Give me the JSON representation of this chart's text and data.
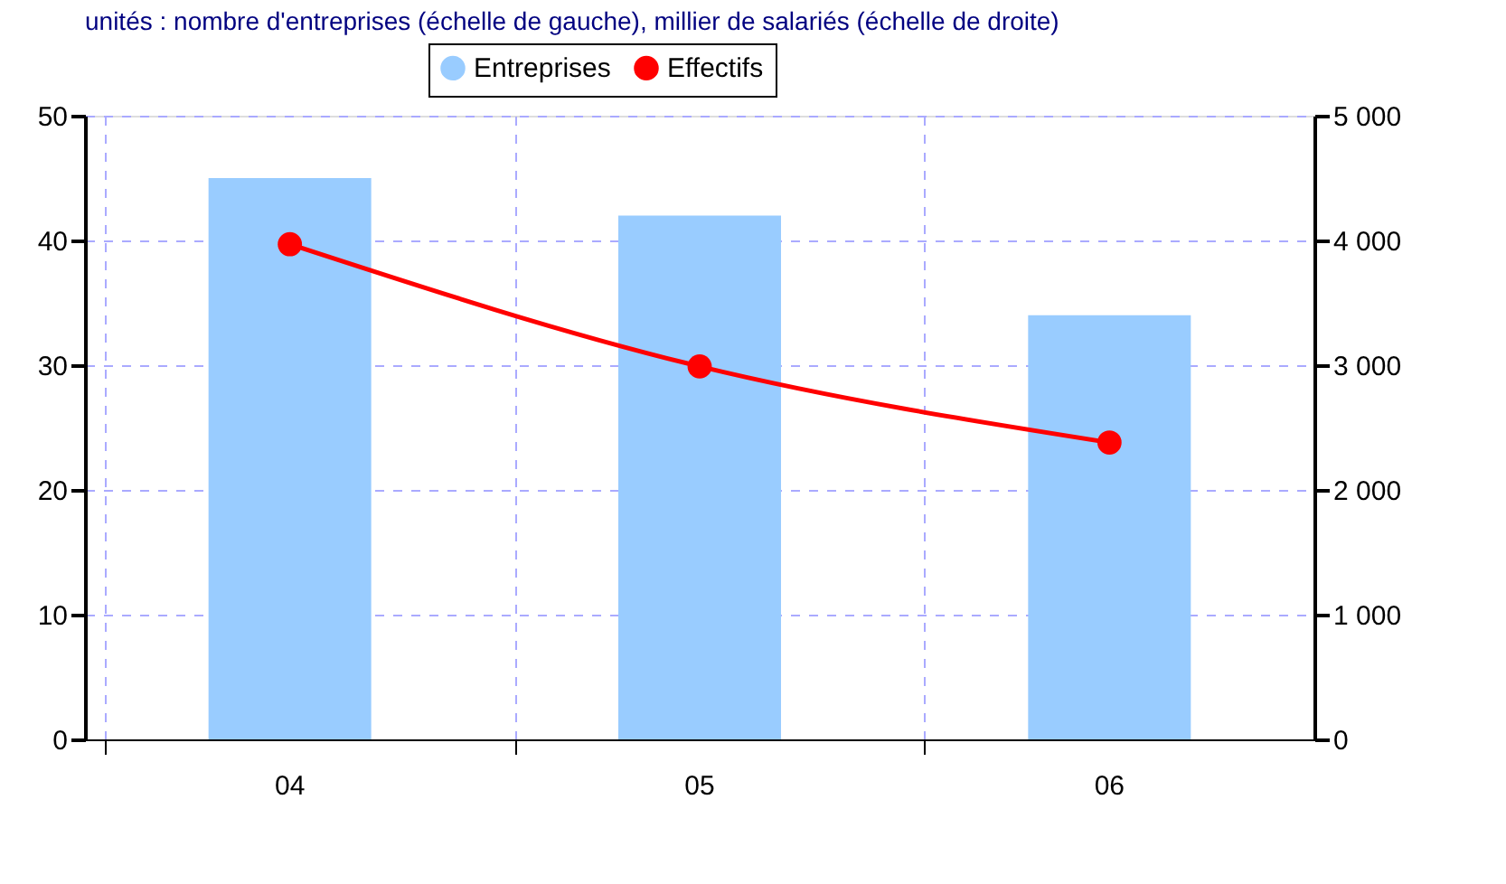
{
  "chart_data": {
    "type": "bar",
    "subtitle": "unités : nombre d'entreprises (échelle de gauche), millier de salariés (échelle de droite)",
    "categories": [
      "04",
      "05",
      "06"
    ],
    "series": [
      {
        "name": "Entreprises",
        "color": "#99ccff",
        "values": [
          45,
          42,
          34
        ]
      },
      {
        "name": "Effectifs",
        "type": "line",
        "axis": "y2",
        "color": "#ff0000",
        "values": [
          3970,
          2990,
          2380
        ]
      }
    ],
    "ylim": [
      0,
      50
    ],
    "yticks": [
      0,
      10,
      20,
      30,
      40,
      50
    ],
    "y2lim": [
      0,
      5000
    ],
    "y2ticks": [
      0,
      {
        "value": 1000,
        "label": "1 000"
      },
      {
        "value": 2000,
        "label": "2 000"
      },
      {
        "value": 3000,
        "label": "3 000"
      },
      {
        "value": 4000,
        "label": "4 000"
      },
      {
        "value": 5000,
        "label": "5 000"
      }
    ],
    "grid": true,
    "legend": "top",
    "marker": "circle",
    "line_style": "solid"
  }
}
